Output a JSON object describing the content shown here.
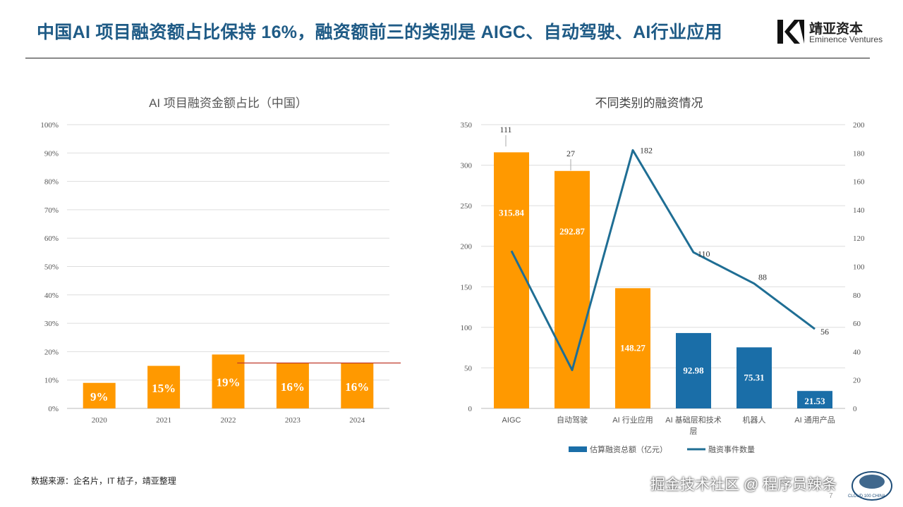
{
  "header": {
    "title": "中国AI 项目融资额占比保持 16%，融资额前三的类别是 AIGC、自动驾驶、AI行业应用",
    "logo_cn": "靖亚资本",
    "logo_en": "Eminence Ventures"
  },
  "colors": {
    "accent": "#1f5b86",
    "orange": "#ff9900",
    "blue": "#1a6ea8",
    "line": "#1f6e94",
    "refline": "#c0392b"
  },
  "chart_data": [
    {
      "type": "bar",
      "title": "AI 项目融资金额占比（中国）",
      "categories": [
        "2020",
        "2021",
        "2022",
        "2023",
        "2024"
      ],
      "values": [
        9,
        15,
        19,
        16,
        16
      ],
      "data_labels": [
        "9%",
        "15%",
        "19%",
        "16%",
        "16%"
      ],
      "ylim": [
        0,
        100
      ],
      "yticks": [
        "0%",
        "10%",
        "20%",
        "30%",
        "40%",
        "50%",
        "60%",
        "70%",
        "80%",
        "90%",
        "100%"
      ],
      "reference_line": 16,
      "grid": true
    },
    {
      "type": "bar",
      "title": "不同类别的融资情况",
      "categories": [
        "AIGC",
        "自动驾驶",
        "AI 行业应用",
        "AI 基础层和技术层",
        "机器人",
        "AI 通用产品"
      ],
      "category_lines": [
        [
          "AIGC"
        ],
        [
          "自动驾驶"
        ],
        [
          "AI 行业应用"
        ],
        [
          "AI 基础层和技术",
          "层"
        ],
        [
          "机器人"
        ],
        [
          "AI 通用产品"
        ]
      ],
      "series": [
        {
          "name": "估算融资总额（亿元）",
          "type": "bar",
          "axis": "left",
          "values": [
            315.84,
            292.87,
            148.27,
            92.98,
            75.31,
            21.53
          ],
          "labels": [
            "315.84",
            "292.87",
            "148.27",
            "92.98",
            "75.31",
            "21.53"
          ],
          "colors": [
            "#ff9900",
            "#ff9900",
            "#ff9900",
            "#1a6ea8",
            "#1a6ea8",
            "#1a6ea8"
          ]
        },
        {
          "name": "融资事件数量",
          "type": "line",
          "axis": "right",
          "values": [
            111,
            27,
            182,
            110,
            88,
            56
          ],
          "labels": [
            "111",
            "27",
            "182",
            "110",
            "88",
            "56"
          ]
        }
      ],
      "ylim_left": [
        0,
        350
      ],
      "yticks_left": [
        "0",
        "50",
        "100",
        "150",
        "200",
        "250",
        "300",
        "350"
      ],
      "ylim_right": [
        0,
        200
      ],
      "yticks_right": [
        "0",
        "20",
        "40",
        "60",
        "80",
        "100",
        "120",
        "140",
        "160",
        "180",
        "200"
      ],
      "legend_position": "bottom",
      "grid": true
    }
  ],
  "footer": {
    "source": "数据来源：企名片，IT 桔子，靖亚整理",
    "page": "7",
    "watermark": "掘金技术社区 @ 程序员辣条",
    "badge": "CLOUD 100 CHINA"
  }
}
